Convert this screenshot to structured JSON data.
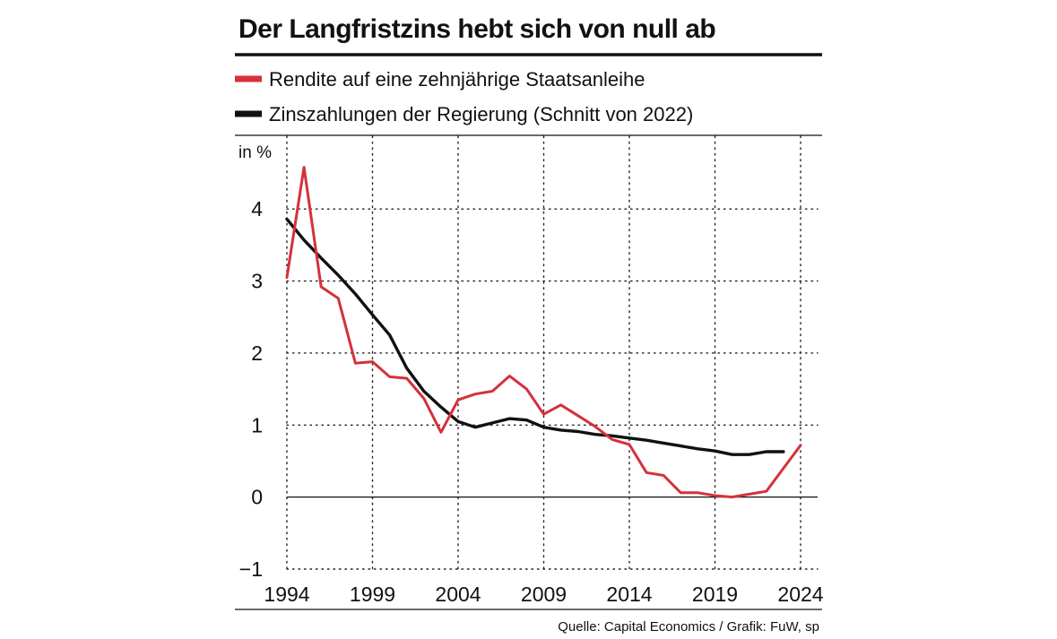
{
  "chart_data": {
    "type": "line",
    "title": "Der Langfristzins hebt sich von null ab",
    "unit_label": "in %",
    "source": "Quelle: Capital Economics / Grafik: FuW, sp",
    "xlim": [
      1994,
      2024
    ],
    "ylim": [
      -1,
      4.6
    ],
    "x_ticks": [
      1994,
      1999,
      2004,
      2009,
      2014,
      2019,
      2024
    ],
    "x_tick_labels": [
      "1994",
      "1999",
      "2004",
      "2009",
      "2014",
      "2019",
      "2024"
    ],
    "y_ticks": [
      -1,
      0,
      1,
      2,
      3,
      4
    ],
    "y_tick_labels": [
      "−1",
      "0",
      "1",
      "2",
      "3",
      "4"
    ],
    "grid": true,
    "legend_position": "top-left",
    "series": [
      {
        "name": "Rendite auf eine zehnjährige Staatsanleihe",
        "color": "#d5313a",
        "x": [
          1994,
          1995,
          1996,
          1997,
          1998,
          1999,
          2000,
          2001,
          2002,
          2003,
          2004,
          2005,
          2006,
          2007,
          2008,
          2009,
          2010,
          2011,
          2012,
          2013,
          2014,
          2015,
          2016,
          2017,
          2018,
          2019,
          2020,
          2021,
          2022,
          2023,
          2024
        ],
        "values": [
          3.05,
          4.58,
          2.92,
          2.76,
          1.86,
          1.88,
          1.67,
          1.65,
          1.37,
          0.9,
          1.35,
          1.43,
          1.47,
          1.68,
          1.5,
          1.15,
          1.28,
          1.13,
          0.98,
          0.8,
          0.73,
          0.34,
          0.3,
          0.06,
          0.06,
          0.02,
          0.0,
          0.04,
          0.08,
          0.4,
          0.72
        ]
      },
      {
        "name": "Zinszahlungen der Regierung (Schnitt von 2022)",
        "color": "#111111",
        "x": [
          1994,
          1995,
          1996,
          1997,
          1998,
          1999,
          2000,
          2001,
          2002,
          2003,
          2004,
          2005,
          2006,
          2007,
          2008,
          2009,
          2010,
          2011,
          2012,
          2013,
          2014,
          2015,
          2016,
          2017,
          2018,
          2019,
          2020,
          2021,
          2022,
          2023
        ],
        "values": [
          3.86,
          3.57,
          3.32,
          3.08,
          2.82,
          2.53,
          2.25,
          1.79,
          1.47,
          1.25,
          1.05,
          0.97,
          1.03,
          1.09,
          1.07,
          0.97,
          0.93,
          0.91,
          0.87,
          0.85,
          0.82,
          0.79,
          0.75,
          0.71,
          0.67,
          0.64,
          0.59,
          0.59,
          0.63,
          0.63
        ]
      }
    ]
  }
}
